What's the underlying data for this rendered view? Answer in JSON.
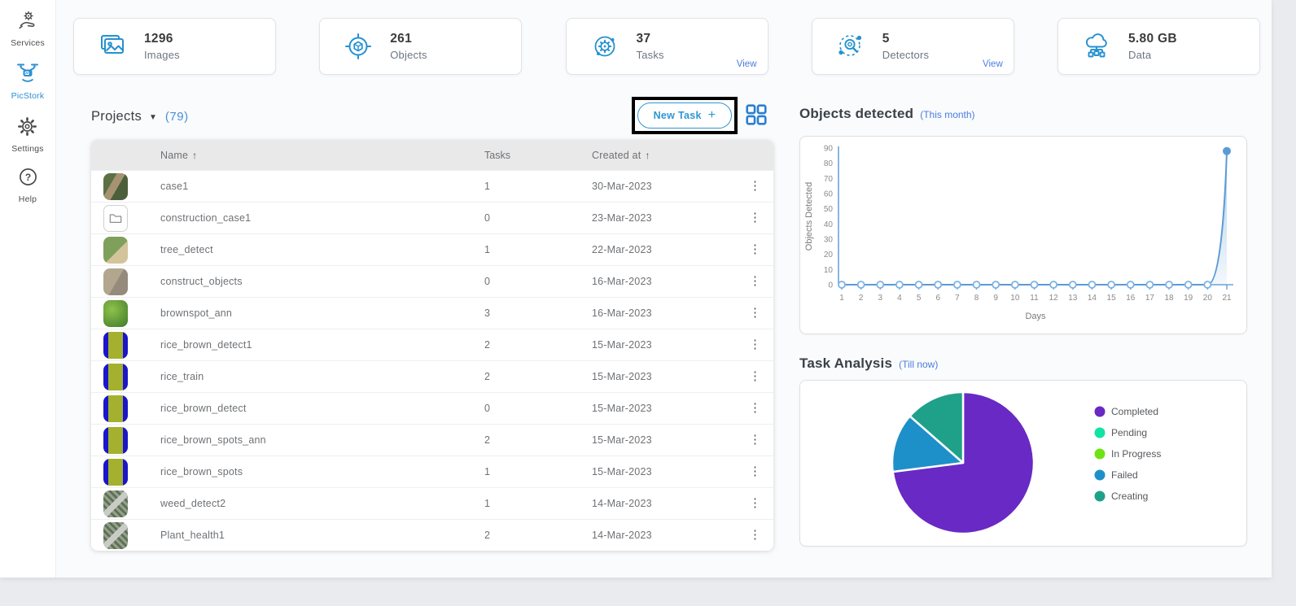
{
  "sidebar": {
    "items": [
      {
        "label": "Services",
        "icon": "services-icon",
        "active": false
      },
      {
        "label": "PicStork",
        "icon": "picstork-icon",
        "active": true
      },
      {
        "label": "Settings",
        "icon": "settings-icon",
        "active": false
      },
      {
        "label": "Help",
        "icon": "help-icon",
        "active": false
      }
    ]
  },
  "stats": {
    "cards": [
      {
        "value": "1296",
        "label": "Images",
        "icon": "images-icon"
      },
      {
        "value": "261",
        "label": "Objects",
        "icon": "objects-icon"
      },
      {
        "value": "37",
        "label": "Tasks",
        "icon": "tasks-icon",
        "view_label": "View"
      },
      {
        "value": "5",
        "label": "Detectors",
        "icon": "detectors-icon",
        "view_label": "View"
      },
      {
        "value": "5.80 GB",
        "label": "Data",
        "icon": "data-icon"
      }
    ]
  },
  "projects": {
    "title": "Projects",
    "dropdown_arrow": "▼",
    "count": "(79)",
    "new_task_label": "New Task",
    "plus_sign": "+",
    "kebab_glyph": "⋮",
    "table": {
      "columns": {
        "name": "Name",
        "tasks": "Tasks",
        "created": "Created at"
      },
      "sort_arrow": "↑",
      "rows": [
        {
          "name": "case1",
          "tasks": "1",
          "created": "30-Mar-2023",
          "thumb": "terrain"
        },
        {
          "name": "construction_case1",
          "tasks": "0",
          "created": "23-Mar-2023",
          "thumb": "folder"
        },
        {
          "name": "tree_detect",
          "tasks": "1",
          "created": "22-Mar-2023",
          "thumb": "trees"
        },
        {
          "name": "construct_objects",
          "tasks": "0",
          "created": "16-Mar-2023",
          "thumb": "ground"
        },
        {
          "name": "brownspot_ann",
          "tasks": "3",
          "created": "16-Mar-2023",
          "thumb": "leaves"
        },
        {
          "name": "rice_brown_detect1",
          "tasks": "2",
          "created": "15-Mar-2023",
          "thumb": "rice"
        },
        {
          "name": "rice_train",
          "tasks": "2",
          "created": "15-Mar-2023",
          "thumb": "rice"
        },
        {
          "name": "rice_brown_detect",
          "tasks": "0",
          "created": "15-Mar-2023",
          "thumb": "rice"
        },
        {
          "name": "rice_brown_spots_ann",
          "tasks": "2",
          "created": "15-Mar-2023",
          "thumb": "rice"
        },
        {
          "name": "rice_brown_spots",
          "tasks": "1",
          "created": "15-Mar-2023",
          "thumb": "rice"
        },
        {
          "name": "weed_detect2",
          "tasks": "1",
          "created": "14-Mar-2023",
          "thumb": "checker"
        },
        {
          "name": "Plant_health1",
          "tasks": "2",
          "created": "14-Mar-2023",
          "thumb": "checker"
        }
      ]
    }
  },
  "objects_section": {
    "title": "Objects detected",
    "subtitle": "(This month)"
  },
  "tasks_section": {
    "title": "Task Analysis",
    "subtitle": "(Till now)"
  },
  "chart_data": [
    {
      "type": "line",
      "title": "Objects detected (This month)",
      "x": [
        1,
        2,
        3,
        4,
        5,
        6,
        7,
        8,
        9,
        10,
        11,
        12,
        13,
        14,
        15,
        16,
        17,
        18,
        19,
        20,
        21
      ],
      "values": [
        0,
        0,
        0,
        0,
        0,
        0,
        0,
        0,
        0,
        0,
        0,
        0,
        0,
        0,
        0,
        0,
        0,
        0,
        0,
        0,
        88
      ],
      "xlabel": "Days",
      "ylabel": "Objects Detected",
      "ylim": [
        0,
        90
      ],
      "ytick_step": 10,
      "grid": false,
      "line_color": "#5b9bd5",
      "marker": "circle"
    },
    {
      "type": "pie",
      "title": "Task Analysis (Till now)",
      "legend_position": "right",
      "series": [
        {
          "name": "Completed",
          "value": 27,
          "color": "#6929c4"
        },
        {
          "name": "Pending",
          "value": 0,
          "color": "#10e3a4"
        },
        {
          "name": "In Progress",
          "value": 0,
          "color": "#6fe312"
        },
        {
          "name": "Failed",
          "value": 5,
          "color": "#1e90c9"
        },
        {
          "name": "Creating",
          "value": 5,
          "color": "#1fa189"
        }
      ]
    }
  ],
  "colors": {
    "accent_blue": "#2591d0",
    "link_blue": "#4a7de0",
    "count_blue": "#4a90d9",
    "annotation_box": "#000000"
  }
}
